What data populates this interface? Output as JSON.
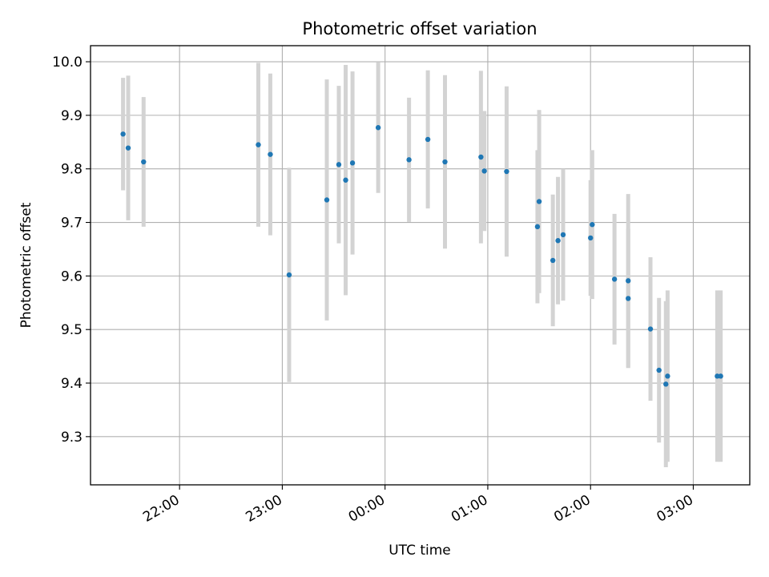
{
  "chart_data": {
    "type": "scatter",
    "title": "Photometric offset variation",
    "xlabel": "UTC time",
    "ylabel": "Photometric offset",
    "x_unit": "UTC time (hours relative to 00:00, negative = previous day)",
    "xlim": [
      "21:08",
      "03:33"
    ],
    "ylim": [
      9.21,
      10.03
    ],
    "grid": true,
    "legend": "none",
    "xticks": [
      {
        "label": "22:00",
        "value": -2
      },
      {
        "label": "23:00",
        "value": -1
      },
      {
        "label": "00:00",
        "value": 0
      },
      {
        "label": "01:00",
        "value": 1
      },
      {
        "label": "02:00",
        "value": 2
      },
      {
        "label": "03:00",
        "value": 3
      }
    ],
    "yticks": [
      {
        "label": "9.3",
        "value": 9.3
      },
      {
        "label": "9.4",
        "value": 9.4
      },
      {
        "label": "9.5",
        "value": 9.5
      },
      {
        "label": "9.6",
        "value": 9.6
      },
      {
        "label": "9.7",
        "value": 9.7
      },
      {
        "label": "9.8",
        "value": 9.8
      },
      {
        "label": "9.9",
        "value": 9.9
      },
      {
        "label": "10.0",
        "value": 10.0
      }
    ],
    "colors": {
      "point": "#1f77b4",
      "errorbar": "#d3d3d3",
      "grid": "#b0b0b0"
    },
    "points": [
      {
        "x": "21:27",
        "y": 9.865,
        "yerr": 0.105
      },
      {
        "x": "21:30",
        "y": 9.839,
        "yerr": 0.135
      },
      {
        "x": "21:39",
        "y": 9.813,
        "yerr": 0.121
      },
      {
        "x": "22:46",
        "y": 9.845,
        "yerr": 0.153
      },
      {
        "x": "22:53",
        "y": 9.827,
        "yerr": 0.151
      },
      {
        "x": "23:04",
        "y": 9.602,
        "yerr": 0.2
      },
      {
        "x": "23:26",
        "y": 9.742,
        "yerr": 0.225
      },
      {
        "x": "23:33",
        "y": 9.808,
        "yerr": 0.147
      },
      {
        "x": "23:37",
        "y": 9.779,
        "yerr": 0.215
      },
      {
        "x": "23:41",
        "y": 9.811,
        "yerr": 0.171
      },
      {
        "x": "23:56",
        "y": 9.877,
        "yerr": 0.122
      },
      {
        "x": "00:14",
        "y": 9.817,
        "yerr": 0.116
      },
      {
        "x": "00:25",
        "y": 9.855,
        "yerr": 0.129
      },
      {
        "x": "00:35",
        "y": 9.813,
        "yerr": 0.162
      },
      {
        "x": "00:56",
        "y": 9.822,
        "yerr": 0.161
      },
      {
        "x": "00:58",
        "y": 9.796,
        "yerr": 0.112
      },
      {
        "x": "01:11",
        "y": 9.795,
        "yerr": 0.159
      },
      {
        "x": "01:29",
        "y": 9.692,
        "yerr": 0.143
      },
      {
        "x": "01:30",
        "y": 9.739,
        "yerr": 0.171
      },
      {
        "x": "01:38",
        "y": 9.629,
        "yerr": 0.123
      },
      {
        "x": "01:41",
        "y": 9.666,
        "yerr": 0.119
      },
      {
        "x": "01:44",
        "y": 9.677,
        "yerr": 0.123
      },
      {
        "x": "02:00",
        "y": 9.671,
        "yerr": 0.108
      },
      {
        "x": "02:01",
        "y": 9.696,
        "yerr": 0.139
      },
      {
        "x": "02:14",
        "y": 9.594,
        "yerr": 0.122
      },
      {
        "x": "02:22",
        "y": 9.591,
        "yerr": 0.162
      },
      {
        "x": "02:22",
        "y": 9.558,
        "yerr": 0.13
      },
      {
        "x": "02:35",
        "y": 9.501,
        "yerr": 0.134
      },
      {
        "x": "02:40",
        "y": 9.424,
        "yerr": 0.135
      },
      {
        "x": "02:44",
        "y": 9.398,
        "yerr": 0.155
      },
      {
        "x": "02:45",
        "y": 9.413,
        "yerr": 0.16
      },
      {
        "x": "03:14",
        "y": 9.413,
        "yerr": 0.16
      },
      {
        "x": "03:16",
        "y": 9.413,
        "yerr": 0.16
      }
    ]
  }
}
